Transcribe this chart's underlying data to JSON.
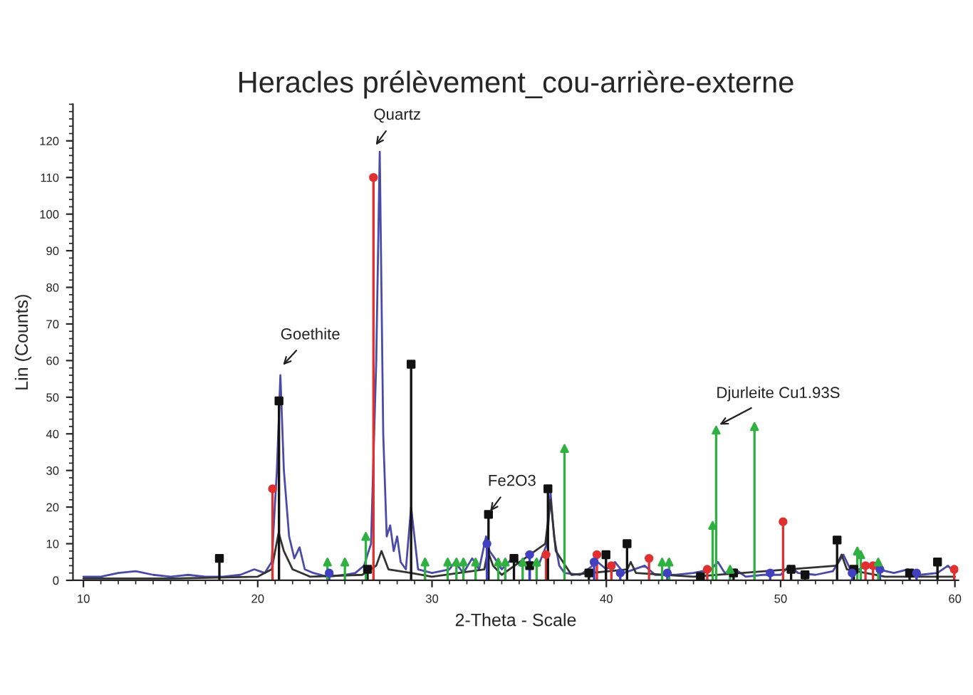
{
  "chart_data": {
    "type": "line",
    "title": "Heracles prélèvement_cou-arrière-externe",
    "xlabel": "2-Theta - Scale",
    "ylabel": "Lin (Counts)",
    "xlim": [
      9.4,
      60.2
    ],
    "ylim": [
      0,
      130
    ],
    "xticks": [
      10,
      20,
      30,
      40,
      50,
      60
    ],
    "yticks": [
      0,
      10,
      20,
      30,
      40,
      50,
      60,
      70,
      80,
      90,
      100,
      110,
      120
    ],
    "grid": false,
    "legend": false,
    "series": [
      {
        "color": "#4a4aa8",
        "marker": "none",
        "x": [
          10,
          11,
          12,
          13,
          14,
          15,
          16,
          17,
          18,
          19,
          19.8,
          20.4,
          20.8,
          21.1,
          21.3,
          21.5,
          21.8,
          22.1,
          22.4,
          22.7,
          23.2,
          24,
          25,
          25.6,
          26.1,
          26.5,
          26.8,
          27.0,
          27.2,
          27.4,
          27.6,
          27.8,
          28.0,
          28.2,
          28.5,
          28.8,
          29.2,
          30,
          31,
          31.3,
          31.8,
          32.3,
          32.7,
          33.1,
          33.3,
          33.6,
          34,
          34.6,
          35.1,
          35.6,
          36.1,
          36.6,
          36.8,
          37.0,
          37.3,
          37.6,
          38.5,
          39.5,
          40.0,
          40.5,
          41,
          42.2,
          42.8,
          44,
          45,
          46,
          46.4,
          46.8,
          47.4,
          48,
          49,
          50,
          50.5,
          51,
          52,
          53,
          53.6,
          54,
          54.5,
          55,
          55.6,
          56.5,
          57.3,
          58,
          59,
          59.6,
          60
        ],
        "values": [
          1,
          1,
          2,
          2.5,
          1.5,
          1,
          1.5,
          1,
          1,
          1.5,
          3,
          2,
          5,
          30,
          56,
          30,
          12,
          6,
          9,
          3,
          2,
          1,
          1.5,
          2,
          4,
          10,
          60,
          117,
          40,
          12,
          15,
          8,
          12,
          5,
          3,
          20,
          3,
          2,
          3,
          5,
          2,
          6,
          3,
          12,
          8,
          6,
          3,
          6,
          4,
          5,
          4,
          10,
          24,
          12,
          4,
          2,
          1.5,
          5,
          3,
          5,
          2,
          4,
          1.5,
          1.5,
          2,
          3,
          5,
          2,
          3,
          1,
          1.5,
          1.5,
          4,
          2,
          1.5,
          2.5,
          7,
          3,
          3,
          4,
          3,
          2,
          3,
          1.5,
          2,
          4,
          2
        ]
      },
      {
        "color": "#333333",
        "marker": "none",
        "x": [
          10,
          15,
          20,
          20.8,
          21.2,
          21.5,
          22,
          23,
          26,
          26.8,
          27.1,
          27.5,
          28.8,
          30,
          33.0,
          33.2,
          33.5,
          34,
          36.5,
          36.8,
          37.1,
          38,
          41.2,
          41.4,
          41.7,
          45,
          53.2,
          53.5,
          53.8,
          56,
          60
        ],
        "values": [
          0.5,
          0.5,
          1,
          3,
          13,
          8,
          3,
          1,
          1.5,
          4,
          8,
          3,
          2,
          1,
          3,
          8,
          4,
          1.5,
          10,
          22,
          8,
          1.5,
          3,
          5,
          2,
          1,
          4,
          7,
          3,
          1,
          1
        ]
      },
      {
        "type": "lollipop",
        "color": "#e03030",
        "marker": "circle",
        "x": [
          20.85,
          26.64,
          36.54,
          39.46,
          40.29,
          42.45,
          45.79,
          50.14,
          54.87,
          55.3,
          59.96
        ],
        "values": [
          25,
          110,
          7,
          7,
          4,
          6,
          3,
          16,
          4,
          4,
          3
        ]
      },
      {
        "type": "lollipop",
        "color": "#111111",
        "marker": "square",
        "x": [
          17.8,
          21.22,
          26.3,
          28.8,
          33.24,
          34.7,
          35.6,
          36.65,
          39.0,
          39.98,
          41.19,
          45.4,
          47.3,
          50.6,
          51.4,
          53.24,
          54.2,
          57.4,
          59.0
        ],
        "values": [
          6,
          49,
          3,
          59,
          18,
          6,
          4,
          25,
          2,
          7,
          10,
          1,
          2,
          3,
          1.5,
          11,
          3,
          2,
          5
        ]
      },
      {
        "type": "lollipop",
        "color": "#4040c0",
        "marker": "circle",
        "x": [
          24.1,
          33.15,
          35.6,
          39.3,
          40.8,
          43.5,
          49.4,
          54.1,
          55.7,
          57.8
        ],
        "values": [
          2,
          10,
          7,
          5,
          2,
          2,
          2,
          2,
          3,
          2
        ]
      },
      {
        "type": "lollipop",
        "color": "#30b040",
        "marker": "triangle",
        "x": [
          24.0,
          25.0,
          26.2,
          29.6,
          30.9,
          31.4,
          31.8,
          32.5,
          33.8,
          34.2,
          35.2,
          36.0,
          37.6,
          43.2,
          43.6,
          46.1,
          46.3,
          47.1,
          48.5,
          54.4,
          54.6,
          55.6
        ],
        "values": [
          5,
          5,
          12,
          5,
          5,
          5,
          5,
          5,
          5,
          5,
          5,
          5,
          36,
          5,
          5,
          15,
          41,
          3,
          42,
          8,
          7,
          5
        ]
      }
    ],
    "annotations": [
      {
        "text": "Goethite",
        "x": 21.3,
        "y": 58
      },
      {
        "text": "Quartz",
        "x": 26.64,
        "y": 118
      },
      {
        "text": "Fe2O3",
        "x": 33.2,
        "y": 18
      },
      {
        "text": "Djurleite Cu1.93S",
        "x": 46.3,
        "y": 42
      }
    ]
  }
}
